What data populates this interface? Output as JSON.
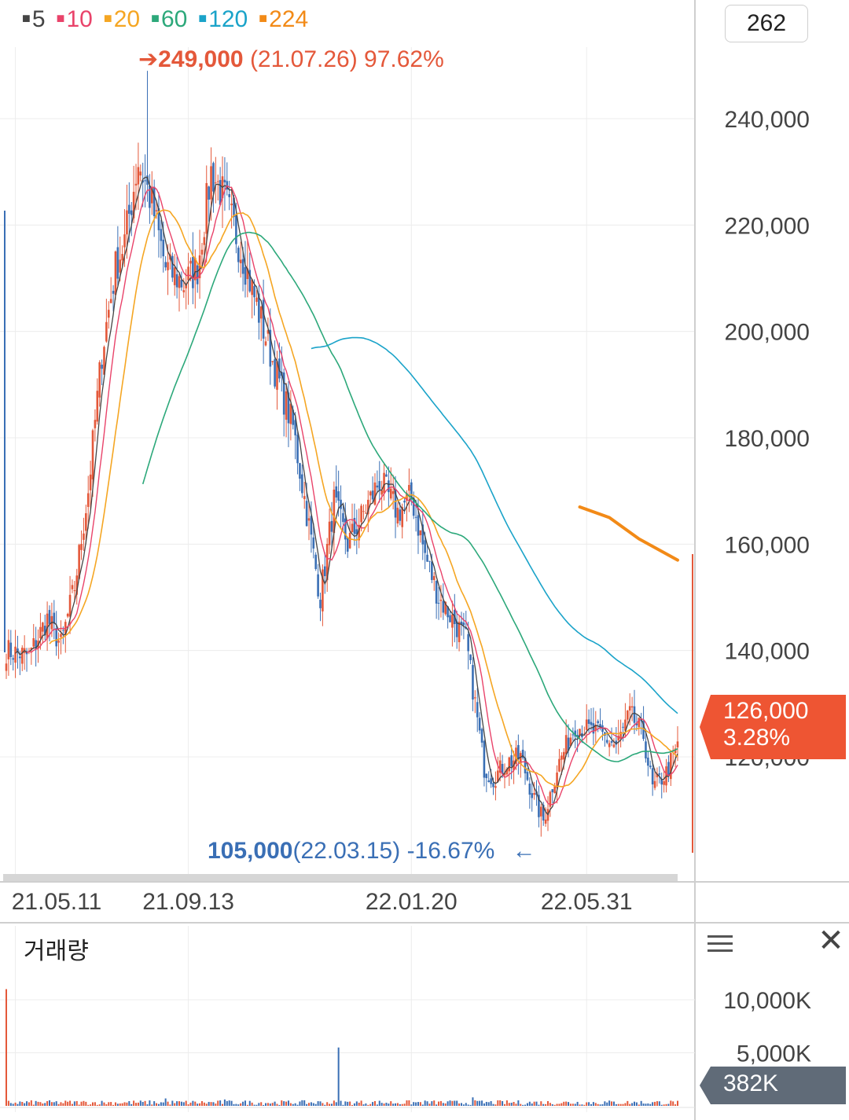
{
  "legend": [
    {
      "label": "5",
      "color": "#444444"
    },
    {
      "label": "10",
      "color": "#e9436a"
    },
    {
      "label": "20",
      "color": "#f5a623"
    },
    {
      "label": "60",
      "color": "#2ca87a"
    },
    {
      "label": "120",
      "color": "#1aa3c9"
    },
    {
      "label": "224",
      "color": "#f28a17"
    }
  ],
  "count_box": "262",
  "high_annotation": {
    "arrow": "➔",
    "price": "249,000",
    "date": "(21.07.26)",
    "pct": "97.62%"
  },
  "low_annotation": {
    "price": "105,000",
    "date": "(22.03.15)",
    "pct": "-16.67%",
    "arrow": "←"
  },
  "current_price": {
    "price": "126,000",
    "change": "3.28%",
    "color": "#ee5533"
  },
  "volume_panel": {
    "title": "거래량",
    "current": "382K"
  },
  "colors": {
    "up": "#e4583a",
    "down": "#3a6fb5",
    "grid": "#ececec",
    "axis_text": "#444444"
  },
  "chart_data": {
    "type": "candlestick",
    "price_axis": {
      "ylim": [
        102000,
        252000
      ],
      "ticks": [
        {
          "v": 120000,
          "label": "120,000"
        },
        {
          "v": 140000,
          "label": "140,000"
        },
        {
          "v": 160000,
          "label": "160,000"
        },
        {
          "v": 180000,
          "label": "180,000"
        },
        {
          "v": 200000,
          "label": "200,000"
        },
        {
          "v": 220000,
          "label": "220,000"
        },
        {
          "v": 240000,
          "label": "240,000"
        }
      ]
    },
    "x_ticks": [
      {
        "index": 4,
        "label": "21.05.11"
      },
      {
        "index": 80,
        "label": "21.09.13"
      },
      {
        "index": 178,
        "label": "22.01.20"
      },
      {
        "index": 255,
        "label": "22.05.31"
      }
    ],
    "bar_count": 296,
    "anchors": [
      [
        0,
        140000
      ],
      [
        10,
        139000
      ],
      [
        18,
        146000
      ],
      [
        24,
        141000
      ],
      [
        30,
        152000
      ],
      [
        36,
        170000
      ],
      [
        42,
        196000
      ],
      [
        48,
        212000
      ],
      [
        52,
        217000
      ],
      [
        58,
        232000
      ],
      [
        64,
        224000
      ],
      [
        70,
        212000
      ],
      [
        78,
        209000
      ],
      [
        84,
        212000
      ],
      [
        90,
        230000
      ],
      [
        96,
        225000
      ],
      [
        104,
        214000
      ],
      [
        110,
        205000
      ],
      [
        118,
        193000
      ],
      [
        126,
        182000
      ],
      [
        132,
        166000
      ],
      [
        138,
        150000
      ],
      [
        144,
        168000
      ],
      [
        150,
        160000
      ],
      [
        156,
        165000
      ],
      [
        164,
        172000
      ],
      [
        172,
        166000
      ],
      [
        178,
        169000
      ],
      [
        184,
        158000
      ],
      [
        190,
        150000
      ],
      [
        196,
        146000
      ],
      [
        202,
        142000
      ],
      [
        206,
        130000
      ],
      [
        210,
        118000
      ],
      [
        214,
        116000
      ],
      [
        220,
        119000
      ],
      [
        226,
        120000
      ],
      [
        232,
        112000
      ],
      [
        236,
        108000
      ],
      [
        242,
        118000
      ],
      [
        250,
        126000
      ],
      [
        256,
        125000
      ],
      [
        262,
        124000
      ],
      [
        268,
        122000
      ],
      [
        274,
        128000
      ],
      [
        280,
        124000
      ],
      [
        284,
        114000
      ],
      [
        290,
        117000
      ],
      [
        295,
        122000
      ]
    ],
    "moving_averages": [
      {
        "name": "60",
        "period": 60,
        "start": 60,
        "color": "#2ca87a"
      },
      {
        "name": "120",
        "period": 120,
        "start": 134,
        "color": "#1aa3c9"
      }
    ],
    "ma224": {
      "name": "224",
      "color": "#f28a17",
      "points": [
        [
          252,
          167000
        ],
        [
          265,
          165000
        ],
        [
          278,
          161000
        ],
        [
          295,
          157000
        ]
      ]
    },
    "high": {
      "index": 62,
      "price": 249000
    },
    "low": {
      "index": 235,
      "price": 105000
    },
    "volume_axis": {
      "ymax": 14000,
      "ticks": [
        {
          "v": 5000,
          "label": "5,000K"
        },
        {
          "v": 10000,
          "label": "10,000K"
        }
      ]
    },
    "volume_spikes": [
      [
        0,
        11000
      ],
      [
        146,
        5500
      ],
      [
        96,
        600
      ],
      [
        205,
        800
      ],
      [
        70,
        700
      ]
    ]
  }
}
